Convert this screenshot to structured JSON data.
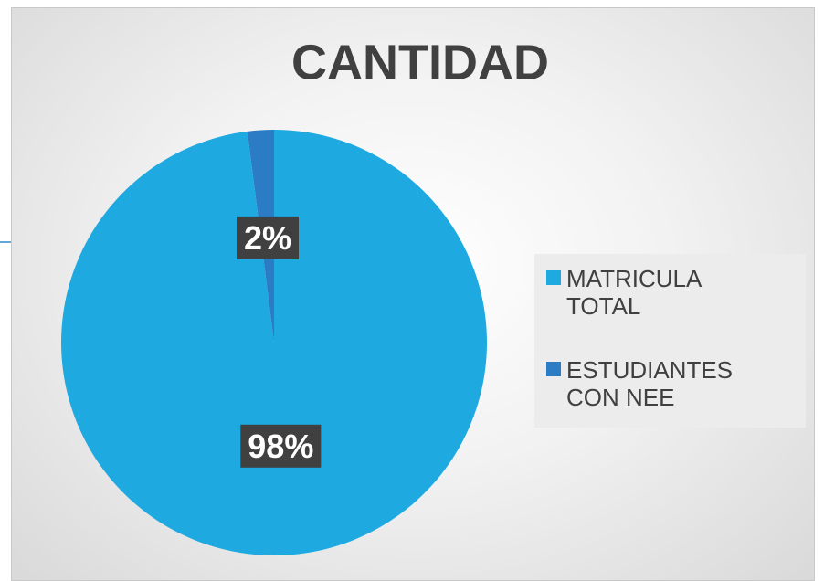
{
  "chart_data": {
    "type": "pie",
    "title": "CANTIDAD",
    "categories": [
      "MATRICULA TOTAL",
      "ESTUDIANTES CON NEE"
    ],
    "values": [
      98,
      2
    ],
    "value_labels": [
      "98%",
      "2%"
    ],
    "colors": [
      "#1eaae1",
      "#2b7cc4"
    ],
    "legend": "right"
  }
}
